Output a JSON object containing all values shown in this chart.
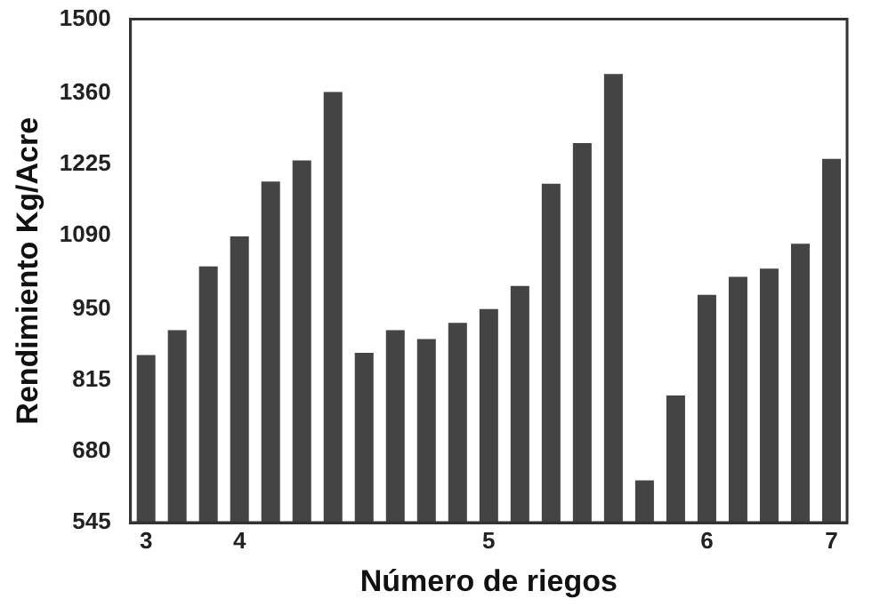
{
  "chart_data": {
    "type": "bar",
    "xlabel": "Número de riegos",
    "ylabel": "Rendimiento Kg/Acre",
    "categories": [
      "3",
      null,
      null,
      "4",
      null,
      null,
      null,
      null,
      null,
      null,
      null,
      "5",
      null,
      null,
      null,
      null,
      null,
      null,
      "6",
      null,
      null,
      null,
      "7"
    ],
    "values": [
      863,
      910,
      1031,
      1088,
      1192,
      1232,
      1362,
      867,
      910,
      893,
      924,
      950,
      994,
      1188,
      1265,
      1396,
      625,
      786,
      977,
      1011,
      1027,
      1074,
      1235
    ],
    "color": "#444444",
    "ylim": [
      545,
      1500
    ],
    "yticks": [
      545,
      680,
      815,
      950,
      1090,
      1225,
      1360,
      1500
    ],
    "grid": false,
    "legend": false
  }
}
